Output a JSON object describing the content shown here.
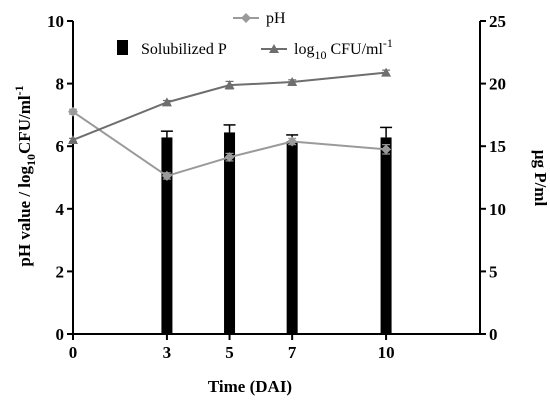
{
  "chart_data": {
    "type": "bar+line",
    "x": [
      0,
      3,
      5,
      7,
      10
    ],
    "x_ticks": [
      "0",
      "3",
      "5",
      "7",
      "10"
    ],
    "xlabel": "Time (DAI)",
    "xlim": [
      0,
      13
    ],
    "y_left": {
      "label": "pH value / log10CFU/ml-1",
      "label_parts": [
        "pH value / log",
        "10",
        "CFU/ml",
        "-1"
      ],
      "lim": [
        0,
        10
      ],
      "ticks": [
        0,
        2,
        4,
        6,
        8,
        10
      ]
    },
    "y_right": {
      "label": "μg P/ml",
      "lim": [
        0,
        25
      ],
      "ticks": [
        0,
        5,
        10,
        15,
        20,
        25
      ]
    },
    "bars": {
      "name": "Solubilized P",
      "axis": "right",
      "x": [
        3,
        5,
        7,
        10
      ],
      "values": [
        15.7,
        16.1,
        15.4,
        15.7
      ],
      "errors": [
        0.5,
        0.6,
        0.5,
        0.8
      ],
      "color": "#000000"
    },
    "series": [
      {
        "name": "pH",
        "axis": "left",
        "marker": "diamond",
        "color": "#9a9a9a",
        "x": [
          0,
          3,
          5,
          7,
          10
        ],
        "values": [
          7.1,
          5.05,
          5.65,
          6.15,
          5.9
        ],
        "errors": [
          0.08,
          0.1,
          0.12,
          0.1,
          0.15
        ]
      },
      {
        "name": "log10 CFU/ml-1",
        "name_parts": [
          "log",
          "10",
          " CFU/ml",
          "-1"
        ],
        "axis": "left",
        "marker": "triangle",
        "color": "#6e6e6e",
        "x": [
          0,
          3,
          5,
          7,
          10
        ],
        "values": [
          6.2,
          7.4,
          7.95,
          8.05,
          8.35
        ],
        "errors": [
          0.05,
          0.06,
          0.12,
          0.07,
          0.08
        ]
      }
    ],
    "legend": {
      "placement": "top-center"
    },
    "grid": false
  }
}
